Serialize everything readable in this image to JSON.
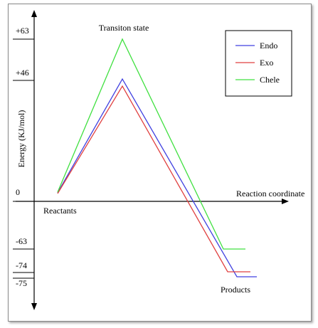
{
  "chart_data": {
    "type": "line",
    "title": "Transiton state",
    "xlabel": "Reaction coordinate",
    "ylabel": "Energy (KJ/mol)",
    "y_ticks": [
      "+63",
      "+46",
      "0",
      "-63",
      "-74",
      "-75"
    ],
    "annotations": {
      "start": "Reactants",
      "end": "Products"
    },
    "series": [
      {
        "name": "Endo",
        "color": "#4040e0",
        "peak": 46,
        "final": -75
      },
      {
        "name": "Exo",
        "color": "#e04040",
        "peak": 46,
        "final": -74
      },
      {
        "name": "Chele",
        "color": "#40e040",
        "peak": 63,
        "final": -63
      }
    ],
    "legend_position": "top-right"
  }
}
